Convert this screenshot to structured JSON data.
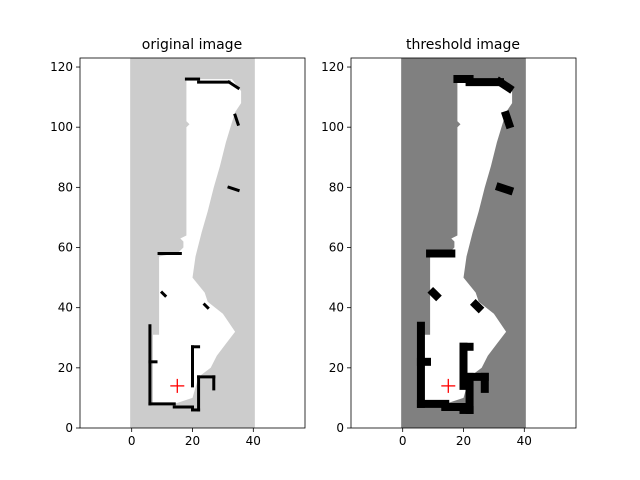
{
  "chart_data": [
    {
      "type": "heatmap",
      "title": "original image",
      "xlim": [
        -17,
        57
      ],
      "ylim": [
        0,
        123
      ],
      "xticks": [
        0,
        20,
        40
      ],
      "yticks": [
        0,
        20,
        40,
        60,
        80,
        100,
        120
      ],
      "grid": false,
      "background_band": {
        "x": [
          -0.5,
          40.5
        ],
        "color": "#cccccc"
      },
      "free_color": "#ffffff",
      "wall_color": "#000000",
      "marker": {
        "x": 15,
        "y": 14,
        "symbol": "+",
        "color": "#ff0000"
      },
      "free_polygon": [
        [
          7,
          8
        ],
        [
          7,
          31
        ],
        [
          9,
          31
        ],
        [
          9,
          57
        ],
        [
          14,
          58
        ],
        [
          15,
          58
        ],
        [
          16,
          59
        ],
        [
          17,
          60
        ],
        [
          17,
          62
        ],
        [
          16,
          63
        ],
        [
          18,
          64
        ],
        [
          18,
          100
        ],
        [
          19,
          101
        ],
        [
          18,
          102
        ],
        [
          18,
          116
        ],
        [
          33,
          116
        ],
        [
          36,
          112
        ],
        [
          36,
          108
        ],
        [
          34,
          105
        ],
        [
          31,
          95
        ],
        [
          29,
          87
        ],
        [
          27,
          80
        ],
        [
          25,
          72
        ],
        [
          23,
          65
        ],
        [
          21,
          57
        ],
        [
          20,
          50
        ],
        [
          24,
          45
        ],
        [
          25,
          42
        ],
        [
          30,
          38
        ],
        [
          32,
          35
        ],
        [
          34,
          32
        ],
        [
          31,
          28
        ],
        [
          28,
          24
        ],
        [
          26,
          20
        ],
        [
          22,
          17
        ],
        [
          20,
          10
        ],
        [
          14,
          8
        ]
      ],
      "walls": [
        [
          [
            6,
            8
          ],
          [
            6,
            34
          ]
        ],
        [
          [
            6,
            22
          ],
          [
            8,
            22
          ]
        ],
        [
          [
            6,
            8
          ],
          [
            14,
            8
          ]
        ],
        [
          [
            14,
            7
          ],
          [
            20,
            7
          ]
        ],
        [
          [
            20,
            6
          ],
          [
            22,
            6
          ]
        ],
        [
          [
            22,
            6
          ],
          [
            22,
            17
          ]
        ],
        [
          [
            22,
            17
          ],
          [
            27,
            17
          ]
        ],
        [
          [
            27,
            13
          ],
          [
            27,
            17
          ]
        ],
        [
          [
            20,
            14
          ],
          [
            20,
            27
          ]
        ],
        [
          [
            20,
            27
          ],
          [
            22,
            27
          ]
        ],
        [
          [
            9,
            58
          ],
          [
            16,
            58
          ]
        ],
        [
          [
            18,
            116
          ],
          [
            22,
            116
          ]
        ],
        [
          [
            22,
            115
          ],
          [
            32,
            115
          ]
        ],
        [
          [
            32,
            115
          ],
          [
            35,
            113
          ]
        ],
        [
          [
            34,
            104
          ],
          [
            35,
            101
          ]
        ],
        [
          [
            32,
            80
          ],
          [
            35,
            79
          ]
        ],
        [
          [
            24,
            41
          ],
          [
            25,
            40
          ]
        ],
        [
          [
            10,
            45
          ],
          [
            11,
            44
          ]
        ]
      ]
    },
    {
      "type": "heatmap",
      "title": "threshold image",
      "xlim": [
        -17,
        57
      ],
      "ylim": [
        0,
        123
      ],
      "xticks": [
        0,
        20,
        40
      ],
      "yticks": [
        0,
        20,
        40,
        60,
        80,
        100,
        120
      ],
      "grid": false,
      "background_band": {
        "x": [
          -0.5,
          40.5
        ],
        "color": "#808080"
      },
      "free_color": "#ffffff",
      "wall_color": "#000000",
      "marker": {
        "x": 15,
        "y": 14,
        "symbol": "+",
        "color": "#ff0000"
      },
      "free_polygon": [
        [
          7,
          8
        ],
        [
          7,
          31
        ],
        [
          9,
          31
        ],
        [
          9,
          57
        ],
        [
          14,
          58
        ],
        [
          15,
          58
        ],
        [
          16,
          59
        ],
        [
          17,
          60
        ],
        [
          17,
          62
        ],
        [
          16,
          63
        ],
        [
          18,
          64
        ],
        [
          18,
          100
        ],
        [
          19,
          101
        ],
        [
          18,
          102
        ],
        [
          18,
          116
        ],
        [
          33,
          116
        ],
        [
          36,
          112
        ],
        [
          36,
          108
        ],
        [
          34,
          105
        ],
        [
          31,
          95
        ],
        [
          29,
          87
        ],
        [
          27,
          80
        ],
        [
          25,
          72
        ],
        [
          23,
          65
        ],
        [
          21,
          57
        ],
        [
          20,
          50
        ],
        [
          24,
          45
        ],
        [
          25,
          42
        ],
        [
          30,
          38
        ],
        [
          32,
          35
        ],
        [
          34,
          32
        ],
        [
          31,
          28
        ],
        [
          28,
          24
        ],
        [
          26,
          20
        ],
        [
          22,
          17
        ],
        [
          20,
          10
        ],
        [
          14,
          8
        ]
      ],
      "walls": [
        [
          [
            6,
            8
          ],
          [
            6,
            34
          ]
        ],
        [
          [
            6,
            22
          ],
          [
            8,
            22
          ]
        ],
        [
          [
            6,
            8
          ],
          [
            14,
            8
          ]
        ],
        [
          [
            14,
            7
          ],
          [
            20,
            7
          ]
        ],
        [
          [
            20,
            6
          ],
          [
            22,
            6
          ]
        ],
        [
          [
            22,
            6
          ],
          [
            22,
            17
          ]
        ],
        [
          [
            22,
            17
          ],
          [
            27,
            17
          ]
        ],
        [
          [
            27,
            13
          ],
          [
            27,
            17
          ]
        ],
        [
          [
            20,
            14
          ],
          [
            20,
            27
          ]
        ],
        [
          [
            20,
            27
          ],
          [
            22,
            27
          ]
        ],
        [
          [
            9,
            58
          ],
          [
            16,
            58
          ]
        ],
        [
          [
            18,
            116
          ],
          [
            22,
            116
          ]
        ],
        [
          [
            22,
            115
          ],
          [
            32,
            115
          ]
        ],
        [
          [
            32,
            115
          ],
          [
            35,
            113
          ]
        ],
        [
          [
            34,
            104
          ],
          [
            35,
            101
          ]
        ],
        [
          [
            32,
            80
          ],
          [
            35,
            79
          ]
        ],
        [
          [
            24,
            41
          ],
          [
            25,
            40
          ]
        ],
        [
          [
            10,
            45
          ],
          [
            11,
            44
          ]
        ]
      ]
    }
  ]
}
